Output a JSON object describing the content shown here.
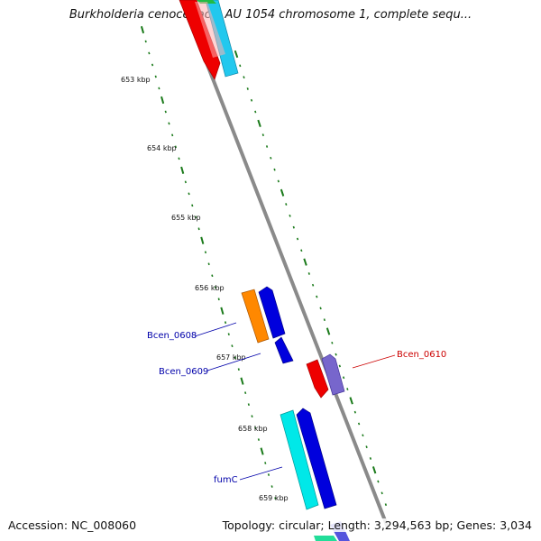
{
  "title": "Burkholderia cenocepacia AU 1054 chromosome 1, complete sequ...",
  "accession_text": "Accession: NC_008060",
  "topology_text": "Topology: circular; Length: 3,294,563 bp; Genes: 3,034",
  "kbp_ticks": [
    "653 kbp",
    "654 kbp",
    "655 kbp",
    "656 kbp",
    "657 kbp",
    "658 kbp",
    "659 kbp"
  ],
  "gene_labels": [
    {
      "text": "Bcen_0608",
      "color": "#0000aa"
    },
    {
      "text": "Bcen_0609",
      "color": "#0000aa"
    },
    {
      "text": "Bcen_0610",
      "color": "#cc0000"
    },
    {
      "text": "fumC",
      "color": "#0000aa"
    }
  ],
  "colors": {
    "backbone": "#8a8a8a",
    "gc_ticks": "#1a7a1a",
    "red_gene": "#ee0000",
    "blue_gene": "#0000dd",
    "orange_gene": "#ff8800",
    "cyan_gene": "#00e8e8",
    "sky_gene": "#22c8ee",
    "purple_gene": "#7766cc"
  }
}
